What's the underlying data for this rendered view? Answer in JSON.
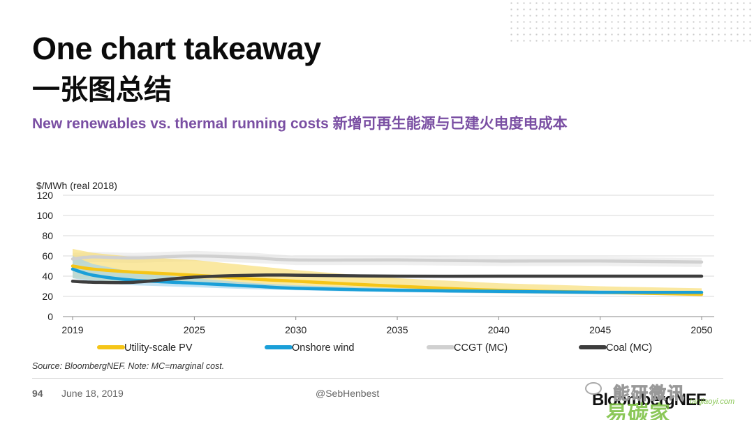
{
  "slide": {
    "title_en": "One chart takeaway",
    "title_zh": "一张图总结",
    "subtitle": "New renewables vs. thermal running costs 新增可再生能源与已建火电度电成本",
    "source": "Source: BloombergNEF. Note: MC=marginal cost.",
    "page_number": "94",
    "date": "June 18, 2019",
    "handle": "@SebHenbest",
    "logo_text": "BloombergNEF",
    "watermark_1": "能研微讯",
    "watermark_2": "易碳家",
    "watermark_2_sub": "tanjiaoyi.com",
    "accent_color": "#7a4fa3"
  },
  "chart_data": {
    "type": "line",
    "title": "",
    "ylabel": "$/MWh (real 2018)",
    "xlabel": "",
    "ylim": [
      0,
      120
    ],
    "xlim": [
      2019,
      2050
    ],
    "y_ticks": [
      0,
      20,
      40,
      60,
      80,
      100,
      120
    ],
    "x_ticks": [
      2019,
      2025,
      2030,
      2035,
      2040,
      2045,
      2050
    ],
    "grid": true,
    "legend_position": "bottom",
    "series": [
      {
        "name": "Utility-scale PV",
        "color": "#f5c518",
        "band_color": "#f7dc6f",
        "x": [
          2019,
          2020,
          2022,
          2025,
          2028,
          2030,
          2035,
          2040,
          2045,
          2050
        ],
        "values": [
          50,
          47,
          44,
          41,
          37,
          35,
          30,
          26,
          24,
          22
        ],
        "band_low": [
          38,
          36,
          34,
          32,
          29,
          28,
          25,
          23,
          22,
          21
        ],
        "band_high": [
          67,
          63,
          59,
          56,
          50,
          46,
          38,
          33,
          30,
          28
        ]
      },
      {
        "name": "Onshore wind",
        "color": "#1a9fd8",
        "band_color": "#9fd3ee",
        "x": [
          2019,
          2020,
          2022,
          2025,
          2028,
          2030,
          2035,
          2040,
          2045,
          2050
        ],
        "values": [
          47,
          41,
          36,
          33,
          30,
          28,
          26,
          25,
          24,
          24
        ],
        "band_low": [
          38,
          34,
          31,
          29,
          27,
          26,
          24,
          23,
          22,
          22
        ],
        "band_high": [
          60,
          52,
          44,
          38,
          33,
          31,
          28,
          27,
          26,
          25
        ]
      },
      {
        "name": "CCGT (MC)",
        "color": "#d0d0d0",
        "band_color": "#e6e6e6",
        "x": [
          2019,
          2020,
          2022,
          2025,
          2028,
          2030,
          2035,
          2040,
          2045,
          2050
        ],
        "values": [
          57,
          59,
          58,
          60,
          58,
          56,
          56,
          55,
          55,
          54
        ],
        "band_low": [
          52,
          54,
          53,
          55,
          53,
          51,
          51,
          50,
          50,
          49
        ],
        "band_high": [
          63,
          64,
          63,
          65,
          63,
          60,
          60,
          59,
          59,
          58
        ]
      },
      {
        "name": "Coal (MC)",
        "color": "#3d3d3d",
        "x": [
          2019,
          2020,
          2022,
          2025,
          2028,
          2030,
          2035,
          2040,
          2045,
          2050
        ],
        "values": [
          35,
          34,
          34,
          39,
          41,
          41,
          40,
          40,
          40,
          40
        ]
      }
    ]
  }
}
